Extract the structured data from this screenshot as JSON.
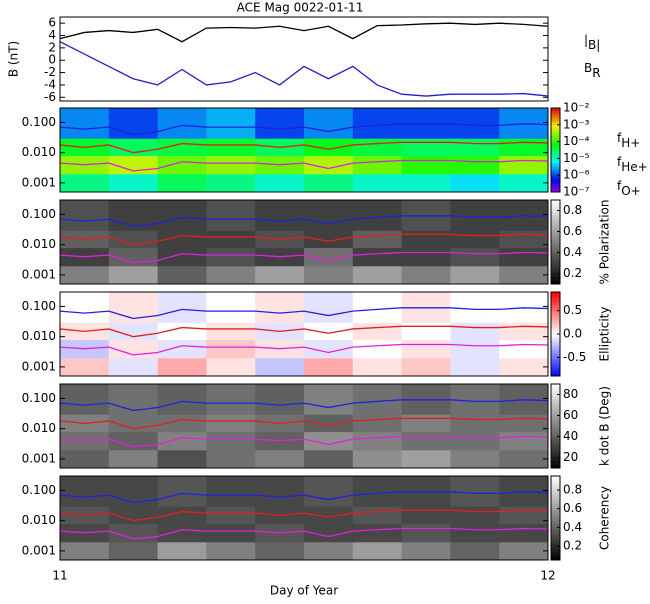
{
  "chart_data": [
    {
      "type": "line",
      "title": "ACE Mag 0022-01-11",
      "y_label": "B (nT)",
      "xlim": [
        11,
        12
      ],
      "xticks": [
        11,
        12
      ],
      "ylim": [
        -6.6,
        7
      ],
      "yticks": [
        -6,
        -4,
        -2,
        0,
        2,
        4,
        6
      ],
      "x": [
        11,
        11.05,
        11.1,
        11.15,
        11.2,
        11.25,
        11.3,
        11.35,
        11.4,
        11.45,
        11.5,
        11.55,
        11.6,
        11.65,
        11.7,
        11.75,
        11.8,
        11.85,
        11.9,
        11.95,
        12
      ],
      "series": [
        {
          "name": "|B|",
          "color": "#000000",
          "values": [
            3.5,
            4.5,
            4.8,
            4.5,
            5,
            3,
            5.2,
            5.3,
            5.2,
            5.5,
            4.8,
            5.5,
            3.5,
            5.6,
            5.7,
            5.9,
            6,
            5.8,
            6,
            5.8,
            5.5
          ]
        },
        {
          "name": "BR",
          "color": "#2020d0",
          "values": [
            3,
            1,
            -1,
            -3,
            -4,
            -1.5,
            -4,
            -3.5,
            -2,
            -4,
            -1,
            -3,
            -1,
            -4,
            -5.5,
            -5.8,
            -5.5,
            -5.5,
            -5.5,
            -5.4,
            -5.8
          ]
        }
      ]
    },
    {
      "type": "heatmap",
      "colormap": "rainbow",
      "zlog": true,
      "xlim": [
        11,
        12
      ],
      "xticks": [
        11,
        12
      ],
      "ylim": [
        0.0005,
        0.3
      ],
      "ylog": true,
      "yticks": [
        0.001,
        {
          "value": 0.01,
          "label": "0.010"
        },
        {
          "value": 0.1,
          "label": "0.100"
        }
      ],
      "bins_x": [
        11,
        11.1,
        11.2,
        11.3,
        11.4,
        11.5,
        11.6,
        11.7,
        11.8,
        11.9,
        12
      ],
      "bins_y": [
        0.0005,
        0.002,
        0.008,
        0.03,
        0.3
      ],
      "z": [
        [
          2e-05,
          1e-05,
          3e-05,
          2e-05,
          1e-05,
          2e-05,
          1e-05,
          1e-05,
          5e-06,
          1e-05
        ],
        [
          0.0003,
          0.0005,
          0.0002,
          0.0003,
          0.0002,
          0.0004,
          0.0002,
          0.0001,
          0.0001,
          0.0003
        ],
        [
          5e-05,
          3e-05,
          4e-05,
          5e-05,
          3e-05,
          6e-05,
          4e-05,
          3e-05,
          3e-05,
          5e-05
        ],
        [
          2e-06,
          1e-06,
          2e-06,
          3e-06,
          1e-06,
          2e-06,
          1e-06,
          1e-06,
          1e-06,
          2e-06
        ]
      ],
      "zlim": [
        1e-07,
        0.01
      ],
      "zticks": [
        {
          "value": 0.01,
          "label": "10⁻²"
        },
        {
          "value": 0.001,
          "label": "10⁻³"
        },
        {
          "value": 0.0001,
          "label": "10⁻⁴"
        },
        {
          "value": 1e-05,
          "label": "10⁻⁵"
        },
        {
          "value": 1e-06,
          "label": "10⁻⁶"
        },
        {
          "value": 1e-07,
          "label": "10⁻⁷"
        }
      ],
      "lines": {
        "x": [
          11,
          11.05,
          11.1,
          11.15,
          11.2,
          11.25,
          11.3,
          11.35,
          11.4,
          11.45,
          11.5,
          11.55,
          11.6,
          11.65,
          11.7,
          11.75,
          11.8,
          11.85,
          11.9,
          11.95,
          12
        ],
        "series": [
          {
            "name": "fH+",
            "color": "#2020e0",
            "values": [
              0.07,
              0.06,
              0.07,
              0.04,
              0.05,
              0.08,
              0.07,
              0.07,
              0.07,
              0.06,
              0.07,
              0.05,
              0.07,
              0.08,
              0.09,
              0.09,
              0.09,
              0.08,
              0.08,
              0.09,
              0.085
            ]
          },
          {
            "name": "fHe+",
            "color": "#e02020",
            "values": [
              0.018,
              0.015,
              0.018,
              0.01,
              0.013,
              0.02,
              0.018,
              0.018,
              0.018,
              0.015,
              0.018,
              0.013,
              0.018,
              0.02,
              0.022,
              0.022,
              0.022,
              0.02,
              0.02,
              0.022,
              0.021
            ]
          },
          {
            "name": "fO+",
            "color": "#e020e0",
            "values": [
              0.0045,
              0.004,
              0.0045,
              0.0025,
              0.003,
              0.005,
              0.0045,
              0.0045,
              0.0045,
              0.004,
              0.0045,
              0.003,
              0.0045,
              0.005,
              0.0055,
              0.0055,
              0.0055,
              0.005,
              0.005,
              0.0055,
              0.0053
            ]
          }
        ]
      }
    },
    {
      "type": "heatmap",
      "colormap": "gray",
      "colorbar_label": "% Polarization",
      "xlim": [
        11,
        12
      ],
      "xticks": [
        11,
        12
      ],
      "ylim": [
        0.0005,
        0.3
      ],
      "ylog": true,
      "yticks": [
        0.001,
        {
          "value": 0.01,
          "label": "0.010"
        },
        {
          "value": 0.1,
          "label": "0.100"
        }
      ],
      "bins_x": [
        11,
        11.1,
        11.2,
        11.3,
        11.4,
        11.5,
        11.6,
        11.7,
        11.8,
        11.9,
        12
      ],
      "bins_y": [
        0.0005,
        0.002,
        0.008,
        0.03,
        0.3
      ],
      "z": [
        [
          0.5,
          0.6,
          0.4,
          0.5,
          0.6,
          0.5,
          0.6,
          0.5,
          0.6,
          0.5
        ],
        [
          0.3,
          0.4,
          0.3,
          0.35,
          0.3,
          0.45,
          0.3,
          0.3,
          0.35,
          0.3
        ],
        [
          0.4,
          0.35,
          0.3,
          0.3,
          0.35,
          0.3,
          0.4,
          0.3,
          0.3,
          0.35
        ],
        [
          0.35,
          0.3,
          0.3,
          0.35,
          0.3,
          0.3,
          0.3,
          0.35,
          0.3,
          0.3
        ]
      ],
      "zlim": [
        0.1,
        0.9
      ],
      "zticks": [
        0.2,
        0.4,
        0.6,
        0.8
      ]
    },
    {
      "type": "heatmap",
      "colormap": "bwr",
      "colorbar_label": "Ellipticity",
      "xlim": [
        11,
        12
      ],
      "xticks": [
        11,
        12
      ],
      "ylim": [
        0.0005,
        0.3
      ],
      "ylog": true,
      "yticks": [
        0.001,
        {
          "value": 0.01,
          "label": "0.010"
        },
        {
          "value": 0.1,
          "label": "0.100"
        }
      ],
      "bins_x": [
        11,
        11.1,
        11.2,
        11.3,
        11.4,
        11.5,
        11.6,
        11.7,
        11.8,
        11.9,
        12
      ],
      "bins_y": [
        0.0005,
        0.002,
        0.008,
        0.03,
        0.3
      ],
      "z": [
        [
          0.2,
          -0.1,
          0.3,
          0.1,
          -0.2,
          0.3,
          0.1,
          0.2,
          -0.1,
          0.1
        ],
        [
          -0.2,
          0.1,
          -0.1,
          0.2,
          0.1,
          -0.1,
          0,
          0.1,
          -0.1,
          0
        ],
        [
          0.1,
          -0.1,
          0,
          0.1,
          -0.1,
          0,
          0.1,
          0,
          -0.1,
          0.1
        ],
        [
          0,
          0.1,
          -0.1,
          0,
          0.1,
          -0.1,
          0,
          0.1,
          0,
          0
        ]
      ],
      "zlim": [
        -0.9,
        0.9
      ],
      "zticks": [
        -0.5,
        {
          "value": 0,
          "label": "0.0"
        },
        0.5
      ]
    },
    {
      "type": "heatmap",
      "colormap": "gray",
      "colorbar_label": "k dot B (Deg)",
      "xlim": [
        11,
        12
      ],
      "xticks": [
        11,
        12
      ],
      "ylim": [
        0.0005,
        0.3
      ],
      "ylog": true,
      "yticks": [
        0.001,
        {
          "value": 0.01,
          "label": "0.010"
        },
        {
          "value": 0.1,
          "label": "0.100"
        }
      ],
      "bins_x": [
        11,
        11.1,
        11.2,
        11.3,
        11.4,
        11.5,
        11.6,
        11.7,
        11.8,
        11.9,
        12
      ],
      "bins_y": [
        0.0005,
        0.002,
        0.008,
        0.03,
        0.3
      ],
      "z": [
        [
          40,
          50,
          35,
          45,
          50,
          40,
          55,
          60,
          50,
          45
        ],
        [
          45,
          40,
          50,
          45,
          40,
          55,
          50,
          45,
          45,
          50
        ],
        [
          50,
          45,
          45,
          50,
          45,
          40,
          45,
          50,
          45,
          45
        ],
        [
          40,
          45,
          40,
          45,
          40,
          50,
          45,
          40,
          45,
          40
        ]
      ],
      "zlim": [
        10,
        90
      ],
      "zticks": [
        20,
        40,
        60,
        80
      ]
    },
    {
      "type": "heatmap",
      "colormap": "gray",
      "colorbar_label": "Coherency",
      "x_label": "Day of Year",
      "xlim": [
        11,
        12
      ],
      "xticks": [
        11,
        12
      ],
      "ylim": [
        0.0005,
        0.3
      ],
      "ylog": true,
      "yticks": [
        0.001,
        {
          "value": 0.01,
          "label": "0.010"
        },
        {
          "value": 0.1,
          "label": "0.100"
        }
      ],
      "bins_x": [
        11,
        11.1,
        11.2,
        11.3,
        11.4,
        11.5,
        11.6,
        11.7,
        11.8,
        11.9,
        12
      ],
      "bins_y": [
        0.0005,
        0.002,
        0.008,
        0.03,
        0.3
      ],
      "z": [
        [
          0.5,
          0.4,
          0.6,
          0.5,
          0.4,
          0.5,
          0.6,
          0.5,
          0.4,
          0.5
        ],
        [
          0.3,
          0.35,
          0.3,
          0.3,
          0.35,
          0.3,
          0.3,
          0.35,
          0.3,
          0.3
        ],
        [
          0.35,
          0.3,
          0.3,
          0.35,
          0.3,
          0.3,
          0.35,
          0.3,
          0.3,
          0.35
        ],
        [
          0.3,
          0.3,
          0.35,
          0.3,
          0.3,
          0.35,
          0.3,
          0.3,
          0.35,
          0.3
        ]
      ],
      "zlim": [
        0.05,
        0.95
      ],
      "zticks": [
        0.2,
        0.4,
        0.6,
        0.8
      ]
    }
  ]
}
